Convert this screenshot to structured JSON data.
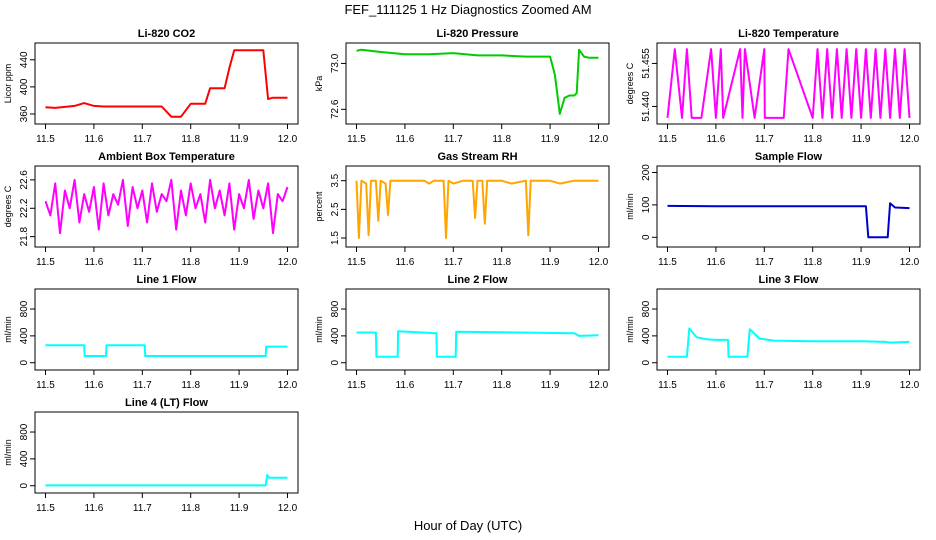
{
  "page": {
    "title": "FEF_111125  1 Hz Diagnostics Zoomed AM",
    "xlabel": "Hour of Day (UTC)"
  },
  "chart_data": [
    {
      "type": "line",
      "title": "Li-820 CO2",
      "ylabel": "Licor ppm",
      "color": "#ff0000",
      "xlim": [
        11.5,
        12.0
      ],
      "ylim": [
        350,
        460
      ],
      "xticks": [
        "11.5",
        "11.6",
        "11.7",
        "11.8",
        "11.9",
        "12.0"
      ],
      "yticks": [
        "360",
        "400",
        "440"
      ],
      "series": [
        {
          "x": [
            11.5,
            11.52,
            11.56,
            11.58,
            11.6,
            11.62,
            11.65,
            11.7,
            11.74,
            11.76,
            11.78,
            11.8,
            11.81,
            11.83,
            11.84,
            11.86,
            11.87,
            11.88,
            11.89,
            11.92,
            11.95,
            11.96,
            11.97,
            12.0
          ],
          "y": [
            370,
            369,
            372,
            376,
            372,
            371,
            371,
            371,
            371,
            356,
            356,
            375,
            375,
            375,
            398,
            398,
            398,
            428,
            454,
            454,
            454,
            382,
            384,
            384
          ]
        }
      ]
    },
    {
      "type": "line",
      "title": "Li-820 Pressure",
      "ylabel": "kPa",
      "color": "#00cc00",
      "xlim": [
        11.5,
        12.0
      ],
      "ylim": [
        72.5,
        73.15
      ],
      "xticks": [
        "11.5",
        "11.6",
        "11.7",
        "11.8",
        "11.9",
        "12.0"
      ],
      "yticks": [
        "72.6",
        "73.0"
      ],
      "series": [
        {
          "x": [
            11.5,
            11.51,
            11.55,
            11.6,
            11.65,
            11.7,
            11.75,
            11.8,
            11.85,
            11.9,
            11.91,
            11.92,
            11.93,
            11.94,
            11.95,
            11.955,
            11.96,
            11.97,
            11.98,
            12.0
          ],
          "y": [
            73.11,
            73.12,
            73.1,
            73.08,
            73.08,
            73.09,
            73.07,
            73.07,
            73.06,
            73.06,
            72.9,
            72.56,
            72.7,
            72.72,
            72.72,
            72.74,
            73.12,
            73.06,
            73.05,
            73.05
          ]
        }
      ]
    },
    {
      "type": "line",
      "title": "Li-820 Temperature",
      "ylabel": "degrees C",
      "color": "#ff00ff",
      "xlim": [
        11.5,
        12.0
      ],
      "ylim": [
        51.435,
        51.461
      ],
      "xticks": [
        "11.5",
        "11.6",
        "11.7",
        "11.8",
        "11.9",
        "12.0"
      ],
      "yticks": [
        "51.440",
        "51.455"
      ],
      "series": [
        {
          "x": [
            11.5,
            11.515,
            11.53,
            11.54,
            11.55,
            11.57,
            11.59,
            11.6,
            11.61,
            11.615,
            11.65,
            11.655,
            11.66,
            11.68,
            11.7,
            11.701,
            11.74,
            11.75,
            11.8,
            11.81,
            11.82,
            11.83,
            11.84,
            11.85,
            11.86,
            11.87,
            11.88,
            11.89,
            11.9,
            11.91,
            11.92,
            11.93,
            11.94,
            11.95,
            11.96,
            11.97,
            11.98,
            11.99,
            12.0
          ],
          "y": [
            51.436,
            51.46,
            51.436,
            51.46,
            51.436,
            51.436,
            51.46,
            51.436,
            51.46,
            51.436,
            51.46,
            51.436,
            51.46,
            51.436,
            51.46,
            51.436,
            51.436,
            51.46,
            51.436,
            51.46,
            51.436,
            51.46,
            51.436,
            51.46,
            51.436,
            51.46,
            51.436,
            51.46,
            51.436,
            51.46,
            51.436,
            51.46,
            51.436,
            51.46,
            51.436,
            51.46,
            51.436,
            51.46,
            51.436
          ]
        }
      ]
    },
    {
      "type": "line",
      "title": "Ambient Box Temperature",
      "ylabel": "degrees C",
      "color": "#ff00ff",
      "xlim": [
        11.5,
        12.0
      ],
      "ylim": [
        21.7,
        22.75
      ],
      "xticks": [
        "11.5",
        "11.6",
        "11.7",
        "11.8",
        "11.9",
        "12.0"
      ],
      "yticks": [
        "21.8",
        "22.2",
        "22.6"
      ],
      "series": [
        {
          "x": [
            11.5,
            11.51,
            11.52,
            11.53,
            11.54,
            11.55,
            11.56,
            11.57,
            11.58,
            11.59,
            11.6,
            11.61,
            11.62,
            11.63,
            11.64,
            11.65,
            11.66,
            11.67,
            11.68,
            11.69,
            11.7,
            11.71,
            11.72,
            11.73,
            11.74,
            11.75,
            11.76,
            11.77,
            11.78,
            11.79,
            11.8,
            11.81,
            11.82,
            11.83,
            11.84,
            11.85,
            11.86,
            11.87,
            11.88,
            11.89,
            11.9,
            11.91,
            11.92,
            11.93,
            11.94,
            11.95,
            11.96,
            11.97,
            11.98,
            11.99,
            12.0
          ],
          "y": [
            22.3,
            22.1,
            22.55,
            21.85,
            22.45,
            22.2,
            22.6,
            22.0,
            22.4,
            22.15,
            22.5,
            21.9,
            22.55,
            22.1,
            22.4,
            22.25,
            22.6,
            21.95,
            22.5,
            22.2,
            22.45,
            22.0,
            22.55,
            22.15,
            22.4,
            22.3,
            22.6,
            21.9,
            22.45,
            22.1,
            22.55,
            22.2,
            22.4,
            22.0,
            22.6,
            22.2,
            22.45,
            22.1,
            22.55,
            21.9,
            22.4,
            22.2,
            22.6,
            22.05,
            22.45,
            22.2,
            22.55,
            21.85,
            22.4,
            22.3,
            22.5
          ]
        }
      ]
    },
    {
      "type": "line",
      "title": "Gas Stream RH",
      "ylabel": "percent",
      "color": "#ffa500",
      "xlim": [
        11.5,
        12.0
      ],
      "ylim": [
        1.3,
        3.9
      ],
      "xticks": [
        "11.5",
        "11.6",
        "11.7",
        "11.8",
        "11.9",
        "12.0"
      ],
      "yticks": [
        "1.5",
        "2.5",
        "3.5"
      ],
      "series": [
        {
          "x": [
            11.5,
            11.505,
            11.51,
            11.52,
            11.525,
            11.53,
            11.54,
            11.545,
            11.55,
            11.56,
            11.565,
            11.57,
            11.6,
            11.62,
            11.63,
            11.64,
            11.65,
            11.66,
            11.67,
            11.68,
            11.685,
            11.69,
            11.7,
            11.72,
            11.74,
            11.745,
            11.75,
            11.76,
            11.765,
            11.77,
            11.8,
            11.82,
            11.85,
            11.855,
            11.86,
            11.88,
            11.9,
            11.92,
            11.95,
            11.98,
            12.0
          ],
          "y": [
            3.5,
            1.5,
            3.5,
            3.4,
            1.6,
            3.5,
            3.5,
            2.1,
            3.5,
            3.4,
            2.3,
            3.5,
            3.5,
            3.5,
            3.5,
            3.5,
            3.4,
            3.5,
            3.5,
            3.5,
            1.5,
            3.5,
            3.4,
            3.5,
            3.5,
            2.2,
            3.5,
            3.5,
            2.0,
            3.5,
            3.5,
            3.4,
            3.5,
            1.6,
            3.5,
            3.5,
            3.5,
            3.4,
            3.5,
            3.5,
            3.5
          ]
        }
      ]
    },
    {
      "type": "line",
      "title": "Sample Flow",
      "ylabel": "ml/min",
      "color": "#0000cc",
      "xlim": [
        11.5,
        12.0
      ],
      "ylim": [
        -20,
        210
      ],
      "xticks": [
        "11.5",
        "11.6",
        "11.7",
        "11.8",
        "11.9",
        "12.0"
      ],
      "yticks": [
        "0",
        "100",
        "200"
      ],
      "series": [
        {
          "x": [
            11.5,
            11.6,
            11.7,
            11.8,
            11.9,
            11.91,
            11.915,
            11.955,
            11.96,
            11.97,
            12.0
          ],
          "y": [
            97,
            96,
            96,
            96,
            96,
            96,
            0,
            0,
            105,
            92,
            90
          ]
        }
      ]
    },
    {
      "type": "line",
      "title": "Line 1 Flow",
      "ylabel": "ml/min",
      "color": "#00ffff",
      "xlim": [
        11.5,
        12.0
      ],
      "ylim": [
        -60,
        1050
      ],
      "xticks": [
        "11.5",
        "11.6",
        "11.7",
        "11.8",
        "11.9",
        "12.0"
      ],
      "yticks": [
        "0",
        "400",
        "800"
      ],
      "series": [
        {
          "x": [
            11.5,
            11.58,
            11.581,
            11.625,
            11.626,
            11.705,
            11.706,
            11.955,
            11.956,
            12.0
          ],
          "y": [
            260,
            260,
            100,
            100,
            260,
            260,
            100,
            100,
            240,
            240
          ]
        }
      ]
    },
    {
      "type": "line",
      "title": "Line 2 Flow",
      "ylabel": "ml/min",
      "color": "#00ffff",
      "xlim": [
        11.5,
        12.0
      ],
      "ylim": [
        -60,
        1050
      ],
      "xticks": [
        "11.5",
        "11.6",
        "11.7",
        "11.8",
        "11.9",
        "12.0"
      ],
      "yticks": [
        "0",
        "400",
        "800"
      ],
      "series": [
        {
          "x": [
            11.5,
            11.54,
            11.541,
            11.585,
            11.586,
            11.665,
            11.666,
            11.705,
            11.706,
            11.95,
            11.96,
            12.0
          ],
          "y": [
            450,
            450,
            90,
            90,
            470,
            440,
            90,
            90,
            460,
            440,
            400,
            410
          ]
        }
      ]
    },
    {
      "type": "line",
      "title": "Line 3 Flow",
      "ylabel": "ml/min",
      "color": "#00ffff",
      "xlim": [
        11.5,
        12.0
      ],
      "ylim": [
        -60,
        1050
      ],
      "xticks": [
        "11.5",
        "11.6",
        "11.7",
        "11.8",
        "11.9",
        "12.0"
      ],
      "yticks": [
        "0",
        "400",
        "800"
      ],
      "series": [
        {
          "x": [
            11.5,
            11.54,
            11.545,
            11.56,
            11.58,
            11.6,
            11.625,
            11.626,
            11.665,
            11.67,
            11.69,
            11.72,
            11.8,
            11.9,
            11.95,
            11.96,
            12.0
          ],
          "y": [
            90,
            90,
            510,
            380,
            350,
            340,
            340,
            90,
            90,
            500,
            360,
            330,
            320,
            320,
            310,
            300,
            310
          ]
        }
      ]
    },
    {
      "type": "line",
      "title": "Line 4 (LT) Flow",
      "ylabel": "ml/min",
      "color": "#00ffff",
      "xlim": [
        11.5,
        12.0
      ],
      "ylim": [
        -60,
        1050
      ],
      "xticks": [
        "11.5",
        "11.6",
        "11.7",
        "11.8",
        "11.9",
        "12.0"
      ],
      "yticks": [
        "0",
        "400",
        "800"
      ],
      "series": [
        {
          "x": [
            11.5,
            11.6,
            11.7,
            11.8,
            11.9,
            11.955,
            11.958,
            11.962,
            11.97,
            12.0
          ],
          "y": [
            5,
            5,
            5,
            5,
            5,
            5,
            160,
            120,
            120,
            120
          ]
        }
      ]
    }
  ]
}
